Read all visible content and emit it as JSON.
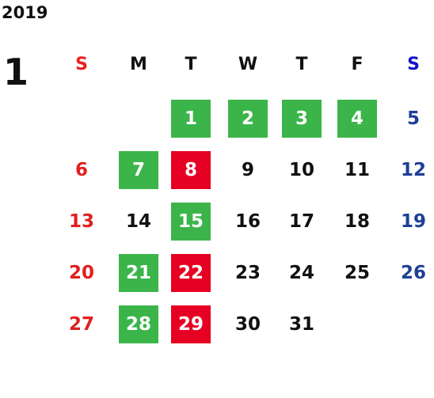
{
  "year": "2019",
  "month": "1",
  "weekdays": [
    "S",
    "M",
    "T",
    "W",
    "T",
    "F",
    "S"
  ],
  "weekday_colors": [
    "#e8201f",
    "#111111",
    "#111111",
    "#111111",
    "#111111",
    "#111111",
    "#1414c8"
  ],
  "day_colors": [
    "#e0201f",
    "#111111",
    "#111111",
    "#111111",
    "#111111",
    "#111111",
    "#1e3f95"
  ],
  "weeks": [
    [
      null,
      null,
      {
        "day": 1,
        "fill": "#3bb54a"
      },
      {
        "day": 2,
        "fill": "#3bb54a"
      },
      {
        "day": 3,
        "fill": "#3bb54a"
      },
      {
        "day": 4,
        "fill": "#3bb54a"
      },
      5
    ],
    [
      6,
      {
        "day": 7,
        "fill": "#3bb54a"
      },
      {
        "day": 8,
        "fill": "#e60023"
      },
      9,
      10,
      11,
      12
    ],
    [
      13,
      14,
      {
        "day": 15,
        "fill": "#3bb54a"
      },
      16,
      17,
      18,
      19
    ],
    [
      20,
      {
        "day": 21,
        "fill": "#3bb54a"
      },
      {
        "day": 22,
        "fill": "#e60023"
      },
      23,
      24,
      25,
      26
    ],
    [
      27,
      {
        "day": 28,
        "fill": "#3bb54a"
      },
      {
        "day": 29,
        "fill": "#e60023"
      },
      30,
      31,
      null,
      null
    ]
  ]
}
